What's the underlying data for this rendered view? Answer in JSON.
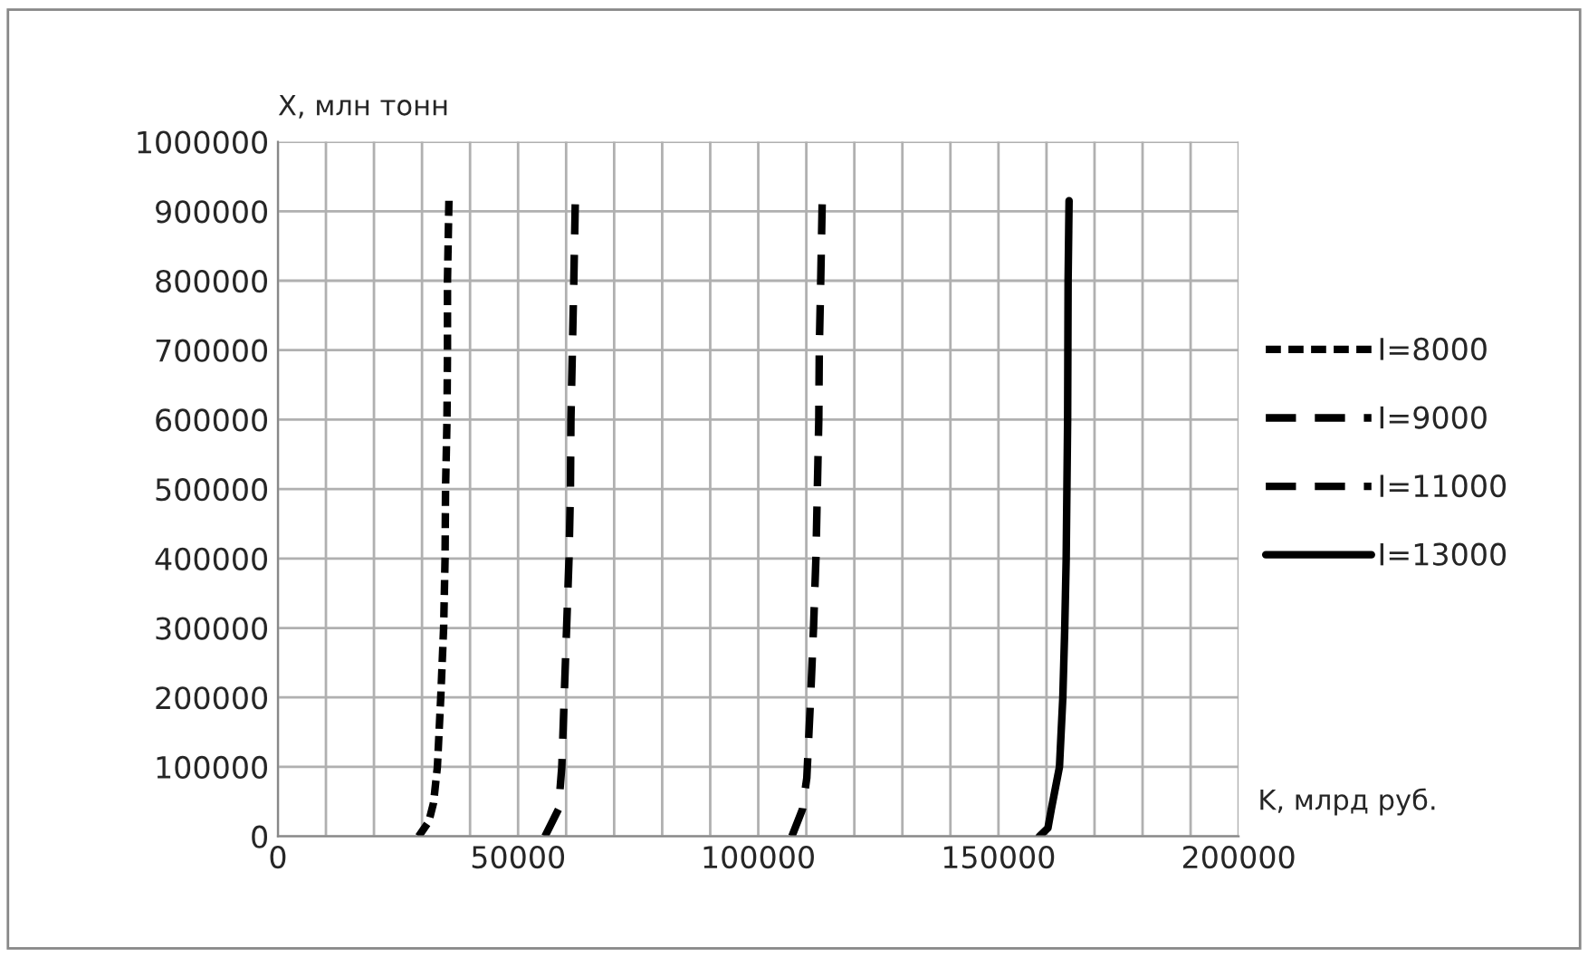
{
  "chart_data": {
    "type": "line",
    "xlabel": "K, млрд руб.",
    "ylabel": "X, млн тонн",
    "xlim": [
      0,
      200000
    ],
    "ylim": [
      0,
      1000000
    ],
    "xticks": [
      0,
      {
        "value": 10000,
        "label": null
      },
      {
        "value": 20000,
        "label": null
      },
      {
        "value": 30000,
        "label": null
      },
      {
        "value": 40000,
        "label": null
      },
      50000,
      {
        "value": 60000,
        "label": null
      },
      {
        "value": 70000,
        "label": null
      },
      {
        "value": 80000,
        "label": null
      },
      {
        "value": 90000,
        "label": null
      },
      100000,
      {
        "value": 110000,
        "label": null
      },
      {
        "value": 120000,
        "label": null
      },
      {
        "value": 130000,
        "label": null
      },
      {
        "value": 140000,
        "label": null
      },
      150000,
      {
        "value": 160000,
        "label": null
      },
      {
        "value": 170000,
        "label": null
      },
      {
        "value": 180000,
        "label": null
      },
      {
        "value": 190000,
        "label": null
      },
      200000
    ],
    "yticks": [
      0,
      100000,
      200000,
      300000,
      400000,
      500000,
      600000,
      700000,
      800000,
      900000,
      1000000
    ],
    "grid": true,
    "legend": "right",
    "marker": "none",
    "series": [
      {
        "name": "I=8000",
        "color": "#000000",
        "line_style": "dotted",
        "x": [
          29300,
          31400,
          32400,
          33200,
          33900,
          34500,
          34800,
          34900,
          35200,
          35300,
          35300,
          35600
        ],
        "values": [
          0,
          21000,
          48000,
          100000,
          200000,
          300000,
          400000,
          500000,
          600000,
          700000,
          800000,
          915000
        ]
      },
      {
        "name": "I=9000",
        "color": "#000000",
        "line_style": "dashed",
        "x": [
          55600,
          58400,
          59100,
          59600,
          60100,
          60600,
          60900,
          61000,
          61300,
          61600,
          61900
        ],
        "values": [
          0,
          39000,
          100000,
          200000,
          300000,
          400000,
          500000,
          600000,
          700000,
          800000,
          910000
        ]
      },
      {
        "name": "I=11000",
        "color": "#000000",
        "line_style": "dashed",
        "x": [
          107000,
          109200,
          110100,
          110900,
          111500,
          112000,
          112300,
          112600,
          112700,
          113000,
          113300
        ],
        "values": [
          0,
          39000,
          84000,
          200000,
          300000,
          400000,
          500000,
          600000,
          700000,
          800000,
          910000
        ]
      },
      {
        "name": "I=13000",
        "color": "#000000",
        "line_style": "solid",
        "x": [
          158500,
          160300,
          161000,
          162700,
          163400,
          163800,
          164100,
          164400,
          164500,
          164700
        ],
        "values": [
          0,
          12000,
          39000,
          100000,
          200000,
          300000,
          400000,
          600000,
          800000,
          915000
        ]
      }
    ]
  }
}
